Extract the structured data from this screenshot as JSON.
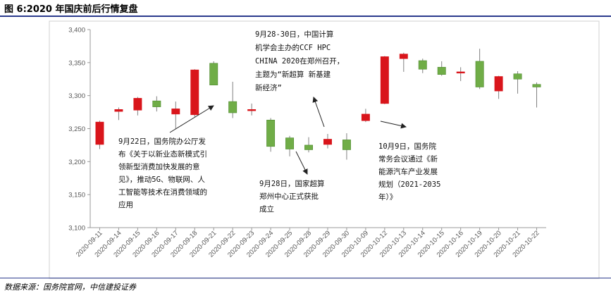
{
  "title": "图 6:2020 年国庆前后行情复盘",
  "source": "数据来源：国务院官网，中信建投证券",
  "colors": {
    "up": "#d9151b",
    "down": "#70ad47",
    "wick": "#808080",
    "frame": "#d0d0d0"
  },
  "chart_data": {
    "type": "candlestick",
    "ylim": [
      3100,
      3400
    ],
    "yticks": [
      "3,100",
      "3,150",
      "3,200",
      "3,250",
      "3,300",
      "3,350",
      "3,400"
    ],
    "ytick_values": [
      3100,
      3150,
      3200,
      3250,
      3300,
      3350,
      3400
    ],
    "categories": [
      "2020-09-11",
      "2020-09-14",
      "2020-09-15",
      "2020-09-16",
      "2020-09-17",
      "2020-09-18",
      "2020-09-21",
      "2020-09-22",
      "2020-09-23",
      "2020-09-24",
      "2020-09-25",
      "2020-09-28",
      "2020-09-29",
      "2020-09-30",
      "2020-10-09",
      "2020-10-12",
      "2020-10-13",
      "2020-10-14",
      "2020-10-15",
      "2020-10-16",
      "2020-10-19",
      "2020-10-20",
      "2020-10-21",
      "2020-10-22"
    ],
    "open": [
      3226,
      3276,
      3278,
      3292,
      3272,
      3271,
      3349,
      3291,
      3279,
      3263,
      3236,
      3225,
      3226,
      3233,
      3262,
      3288,
      3356,
      3353,
      3343,
      3335,
      3352,
      3307,
      3333,
      3317
    ],
    "close": [
      3260,
      3279,
      3296,
      3283,
      3280,
      3339,
      3316,
      3274,
      3279,
      3223,
      3219,
      3218,
      3234,
      3218,
      3272,
      3359,
      3363,
      3340,
      3332,
      3336,
      3313,
      3329,
      3325,
      3313
    ],
    "high": [
      3262,
      3282,
      3298,
      3299,
      3291,
      3340,
      3352,
      3321,
      3288,
      3266,
      3239,
      3237,
      3242,
      3243,
      3280,
      3360,
      3365,
      3356,
      3352,
      3343,
      3371,
      3330,
      3337,
      3320
    ],
    "low": [
      3219,
      3263,
      3270,
      3276,
      3250,
      3268,
      3316,
      3266,
      3270,
      3215,
      3208,
      3214,
      3220,
      3203,
      3260,
      3287,
      3336,
      3334,
      3330,
      3322,
      3310,
      3295,
      3303,
      3282
    ],
    "annotations": [
      {
        "lines": [
          "9月22日，国务院办公厅发",
          "布《关于以新业态新模式引",
          "领新型消费加快发展的意",
          "见》，推动5G、物联网、人",
          "工智能等技术在消费领域的",
          "应用"
        ]
      },
      {
        "lines": [
          "9月28-30日，中国计算",
          "机学会主办的CCF HPC",
          "CHINA 2020在郑州召开，",
          "主题为“新超算 新基建",
          "新经济”"
        ]
      },
      {
        "lines": [
          "9月28日，国家超算",
          "郑州中心正式获批",
          "成立"
        ]
      },
      {
        "lines": [
          "10月9日，国务院",
          "常务会议通过《新",
          "能源汽车产业发展",
          "规划（2021-2035",
          "年）》"
        ]
      }
    ]
  }
}
